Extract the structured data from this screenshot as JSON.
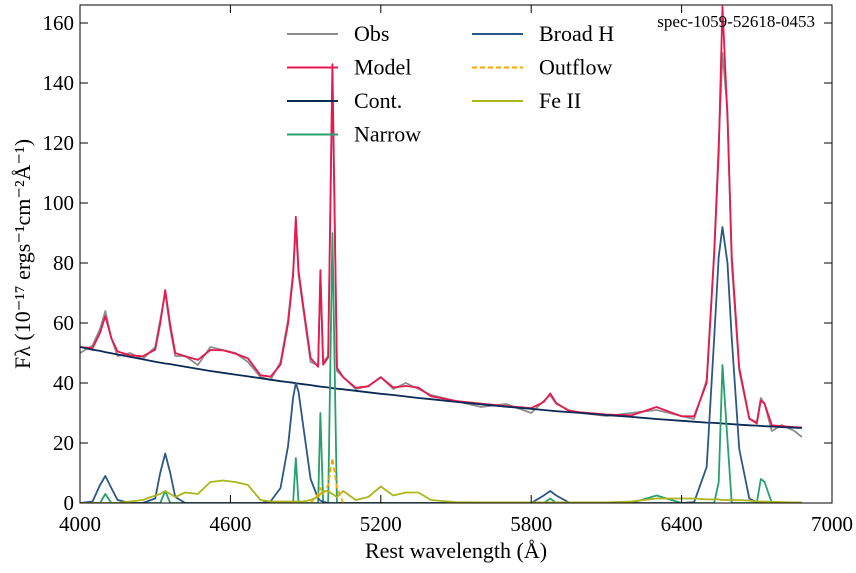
{
  "chart_data": {
    "type": "line",
    "xlabel": "Rest wavelength (Å)",
    "ylabel": "Fλ (10⁻¹⁷ ergs⁻¹cm⁻²Å⁻¹)",
    "annotation": "spec-1059-52618-0453",
    "xlim": [
      4000,
      7000
    ],
    "xticks": [
      4000,
      4600,
      5200,
      5800,
      6400,
      7000
    ],
    "ylim": [
      0,
      166
    ],
    "yticks": [
      0,
      20,
      40,
      60,
      80,
      100,
      120,
      140,
      160
    ],
    "legend": "upper center",
    "x": [
      4000,
      4050,
      4080,
      4101,
      4125,
      4150,
      4200,
      4250,
      4300,
      4320,
      4340,
      4360,
      4380,
      4420,
      4470,
      4520,
      4570,
      4620,
      4670,
      4720,
      4760,
      4800,
      4830,
      4850,
      4861,
      4872,
      4890,
      4920,
      4950,
      4959,
      4970,
      4990,
      5007,
      5025,
      5050,
      5100,
      5150,
      5200,
      5250,
      5300,
      5350,
      5400,
      5500,
      5600,
      5700,
      5800,
      5850,
      5876,
      5900,
      5950,
      6000,
      6100,
      6200,
      6300,
      6400,
      6450,
      6500,
      6530,
      6548,
      6563,
      6583,
      6600,
      6630,
      6670,
      6700,
      6716,
      6731,
      6760,
      6800,
      6850,
      6880
    ],
    "series": [
      {
        "name": "Obs",
        "color": "#8c8c8c",
        "linestyle": "solid",
        "values": [
          50,
          52.5,
          58,
          64,
          55,
          49,
          50,
          48,
          52,
          61,
          70,
          58,
          49,
          49,
          46,
          52,
          51,
          50,
          47,
          42,
          41,
          47,
          61,
          77,
          92,
          76,
          65,
          47,
          46,
          75,
          47,
          49,
          143,
          44,
          42,
          38,
          39,
          42,
          38,
          40,
          38,
          36,
          34,
          32,
          33,
          30,
          34,
          36,
          33,
          31,
          30,
          29,
          30,
          31,
          29,
          28,
          41,
          84,
          120,
          150,
          131,
          80,
          44,
          28,
          27,
          35,
          33,
          24,
          26,
          24,
          22
        ]
      },
      {
        "name": "Model",
        "color": "#e8174d",
        "linestyle": "solid",
        "values": [
          52,
          51.6,
          56.7,
          62.3,
          54.9,
          50.5,
          49.2,
          48.9,
          51.1,
          59.8,
          71,
          59.3,
          50,
          48.9,
          47.7,
          51,
          50.9,
          49.8,
          48.2,
          42.6,
          42.1,
          46.1,
          59.8,
          75.6,
          95.4,
          77.3,
          66.1,
          48.3,
          45.4,
          77.6,
          46.1,
          48.5,
          146.3,
          45.1,
          41.9,
          38.4,
          38.9,
          41.9,
          38.5,
          39,
          38.5,
          35.6,
          34,
          33.1,
          32.3,
          31.6,
          33.7,
          36.5,
          33.3,
          30.7,
          30.2,
          29.5,
          29.2,
          32,
          28.9,
          28.9,
          40,
          82.9,
          116.8,
          165.5,
          128.4,
          82.3,
          45.1,
          28.2,
          26.5,
          34.2,
          33.1,
          25.9,
          25.6,
          25.3,
          25.2
        ]
      },
      {
        "name": "Cont.",
        "color": "#0b2a55",
        "linestyle": "solid",
        "values": [
          52,
          51.1,
          50.7,
          50.3,
          49.9,
          49.5,
          48.7,
          47.9,
          47.1,
          46.8,
          46.5,
          46.3,
          46.0,
          45.4,
          44.7,
          44.0,
          43.4,
          42.8,
          42.2,
          41.6,
          41.1,
          40.6,
          40.3,
          40.1,
          39.9,
          39.8,
          39.6,
          39.3,
          38.9,
          38.8,
          38.7,
          38.5,
          38.3,
          38.1,
          37.9,
          37.4,
          36.9,
          36.4,
          36.0,
          35.5,
          35.0,
          34.6,
          33.7,
          32.9,
          32.1,
          31.4,
          31.0,
          30.8,
          30.6,
          30.3,
          30.0,
          29.3,
          28.7,
          28.0,
          27.4,
          27.1,
          26.8,
          26.7,
          26.6,
          26.5,
          26.4,
          26.3,
          26.1,
          25.9,
          25.8,
          25.7,
          25.6,
          25.5,
          25.3,
          25.1,
          25.0
        ]
      },
      {
        "name": "Narrow",
        "color": "#26a06c",
        "linestyle": "solid",
        "values": [
          0,
          0,
          0,
          3,
          0,
          0,
          0,
          0,
          0,
          0,
          4,
          0,
          0,
          0,
          0,
          0,
          0,
          0,
          0,
          0,
          0,
          0,
          0,
          0,
          15,
          0,
          0,
          0,
          0,
          30,
          0,
          0,
          90,
          0,
          0,
          0,
          0,
          0,
          0,
          0,
          0,
          0,
          0,
          0,
          0,
          0,
          0,
          1.5,
          0,
          0,
          0,
          0,
          0,
          2.5,
          0,
          0,
          0,
          0,
          7,
          46,
          21,
          0,
          0,
          0,
          0,
          8,
          7,
          0,
          0,
          0,
          0
        ]
      },
      {
        "name": "Broad H",
        "color": "#2b5786",
        "linestyle": "solid",
        "values": [
          0,
          0.5,
          6,
          9,
          5,
          1,
          0,
          0,
          1.5,
          10,
          16.5,
          10,
          2,
          0,
          0,
          0,
          0,
          0,
          0,
          0,
          0.5,
          5,
          19,
          35,
          40,
          37,
          26,
          8,
          1.5,
          0.8,
          0.4,
          0,
          0,
          0,
          0,
          0,
          0,
          0,
          0,
          0,
          0,
          0,
          0,
          0,
          0,
          0,
          2.5,
          4,
          2.5,
          0.2,
          0,
          0,
          0,
          0,
          0,
          0.3,
          12,
          55,
          82,
          92,
          80,
          55,
          18,
          1.5,
          0.2,
          0,
          0,
          0,
          0,
          0,
          0
        ]
      },
      {
        "name": "Outflow",
        "color": "#ffa500",
        "linestyle": "dashed",
        "values": [
          null,
          null,
          null,
          null,
          null,
          null,
          null,
          null,
          null,
          null,
          null,
          null,
          null,
          null,
          null,
          null,
          null,
          null,
          null,
          null,
          null,
          null,
          null,
          null,
          null,
          null,
          null,
          0,
          3,
          5,
          3,
          6,
          15,
          5,
          0,
          null,
          null,
          null,
          null,
          null,
          null,
          null,
          null,
          null,
          null,
          null,
          null,
          null,
          null,
          null,
          null,
          null,
          null,
          null,
          null,
          null,
          null,
          null,
          null,
          null,
          null,
          null,
          null,
          null,
          null,
          null,
          null,
          null,
          null,
          null,
          null
        ]
      },
      {
        "name": "Fe II",
        "color": "#adb51c",
        "linestyle": "solid",
        "values": [
          0,
          0,
          0,
          0,
          0,
          0,
          0.5,
          1,
          2.5,
          3,
          4,
          3,
          2,
          3.5,
          3,
          7,
          7.5,
          7,
          6,
          1,
          0.5,
          0.5,
          0.5,
          0.5,
          0.5,
          0.5,
          0.5,
          1,
          2,
          3,
          4,
          4,
          3,
          2,
          4,
          1,
          2,
          5.5,
          2.5,
          3.5,
          3.5,
          1,
          0.3,
          0.2,
          0.2,
          0.2,
          0.2,
          0.2,
          0.2,
          0.2,
          0.2,
          0.2,
          0.5,
          1.5,
          1.5,
          1.5,
          1.2,
          1.2,
          1.2,
          1,
          1,
          1,
          1,
          0.8,
          0.5,
          0.5,
          0.5,
          0.4,
          0.3,
          0.2,
          0.2
        ]
      }
    ]
  }
}
